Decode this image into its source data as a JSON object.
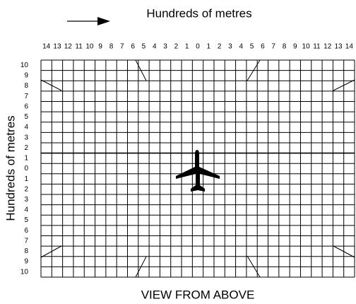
{
  "top_label": "Hundreds of metres",
  "side_label": "Hundreds of metres",
  "caption": "VIEW FROM ABOVE",
  "x_labels": [
    14,
    13,
    12,
    11,
    10,
    9,
    8,
    7,
    6,
    5,
    4,
    3,
    2,
    1,
    0,
    1,
    2,
    3,
    4,
    5,
    6,
    7,
    8,
    9,
    10,
    11,
    12,
    13,
    14
  ],
  "y_labels": [
    10,
    9,
    8,
    7,
    6,
    5,
    4,
    3,
    2,
    1,
    0,
    1,
    2,
    3,
    4,
    5,
    6,
    7,
    8,
    9,
    10
  ]
}
